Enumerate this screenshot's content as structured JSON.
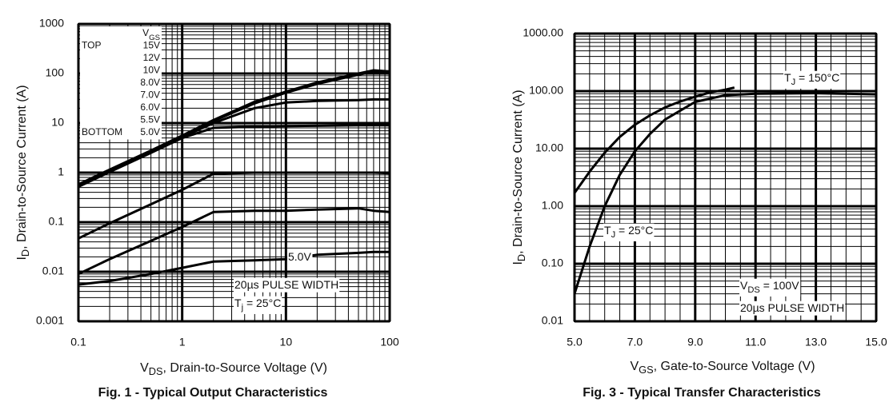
{
  "chart_data": [
    {
      "type": "line",
      "caption": "Fig. 1 - Typical Output Characteristics",
      "xlabel": [
        "V",
        "DS",
        ", Drain-to-Source Voltage (V)"
      ],
      "ylabel": [
        "I",
        "D",
        ", Drain-to-Source Current (A)"
      ],
      "xscale": "log",
      "yscale": "log",
      "grid": true,
      "minor_grid": true,
      "color": "#000000",
      "xlim": [
        0.1,
        100
      ],
      "xticks": [
        0.1,
        1,
        10,
        100
      ],
      "ylim": [
        0.001,
        1000
      ],
      "yticks": [
        0.001,
        0.01,
        0.1,
        1,
        10,
        100,
        1000
      ],
      "x": [
        0.1,
        0.2,
        0.5,
        1,
        2,
        5,
        10,
        20,
        50,
        70,
        100
      ],
      "legend": {
        "title": [
          "V",
          "GS"
        ],
        "top": "TOP",
        "bottom": "BOTTOM",
        "corner": "top-left"
      },
      "series": [
        {
          "name": "15V",
          "values": [
            0.58,
            1.15,
            2.8,
            5.6,
            11.5,
            27,
            43,
            66,
            100,
            116,
            110
          ]
        },
        {
          "name": "12V",
          "values": [
            0.57,
            1.13,
            2.75,
            5.5,
            11.2,
            26,
            42,
            64,
            98,
            112,
            108
          ]
        },
        {
          "name": "10V",
          "values": [
            0.56,
            1.1,
            2.7,
            5.4,
            11,
            25,
            41,
            62,
            95,
            108,
            105
          ]
        },
        {
          "name": "8.0V",
          "values": [
            0.54,
            1.07,
            2.6,
            5.2,
            10,
            20,
            26,
            28,
            29,
            30,
            30
          ]
        },
        {
          "name": "7.0V",
          "values": [
            0.52,
            1.03,
            2.5,
            5,
            8,
            8.5,
            8.7,
            8.8,
            9,
            9,
            9
          ]
        },
        {
          "name": "6.0V",
          "values": [
            0.047,
            0.095,
            0.23,
            0.45,
            0.95,
            1,
            1,
            1,
            1,
            1,
            0.97
          ]
        },
        {
          "name": "5.5V",
          "values": [
            0.009,
            0.018,
            0.042,
            0.08,
            0.16,
            0.17,
            0.17,
            0.18,
            0.19,
            0.17,
            0.16
          ]
        },
        {
          "name": "5.0V",
          "values": [
            0.0055,
            0.0065,
            0.009,
            0.012,
            0.016,
            0.017,
            0.018,
            0.022,
            0.024,
            0.025,
            0.025
          ]
        }
      ],
      "annotations": [
        [
          "5.0V"
        ],
        [
          "20µs PULSE WIDTH"
        ],
        [
          "T",
          "j",
          " = 25°C"
        ]
      ]
    },
    {
      "type": "line",
      "caption": "Fig. 3 - Typical Transfer Characteristics",
      "xlabel": [
        "V",
        "GS",
        ", Gate-to-Source Voltage (V)"
      ],
      "ylabel": [
        "I",
        "D",
        ", Drain-to-Source Current  (A)"
      ],
      "xscale": "linear",
      "yscale": "log",
      "grid": true,
      "minor_grid": true,
      "color": "#000000",
      "xlim": [
        5,
        15
      ],
      "xticks": [
        {
          "value": 5,
          "label": "5.0"
        },
        {
          "value": 7,
          "label": "7.0"
        },
        {
          "value": 9,
          "label": "9.0"
        },
        {
          "value": 11,
          "label": "11.0"
        },
        {
          "value": 13,
          "label": "13.0"
        },
        {
          "value": 15,
          "label": "15.0"
        }
      ],
      "ylim": [
        0.01,
        1000
      ],
      "yticks": [
        0.01,
        {
          "value": 0.1,
          "label": "0.10"
        },
        {
          "value": 1,
          "label": "1.00"
        },
        {
          "value": 10,
          "label": "10.00"
        },
        {
          "value": 100,
          "label": "100.00"
        },
        {
          "value": 1000,
          "label": "1000.00"
        }
      ],
      "series": [
        {
          "x": [
            5,
            5.5,
            6,
            6.5,
            7,
            7.5,
            8,
            8.5,
            9,
            9.5,
            10,
            10.3
          ],
          "values": [
            1.7,
            4,
            8.5,
            16,
            26,
            38,
            52,
            66,
            80,
            95,
            106,
            115
          ]
        },
        {
          "x": [
            5,
            5.5,
            6,
            6.5,
            7,
            7.5,
            8,
            9,
            10,
            11,
            13,
            15
          ],
          "values": [
            0.03,
            0.2,
            1,
            3.5,
            9,
            18,
            32,
            65,
            85,
            90,
            92,
            88
          ]
        }
      ],
      "annotations": [
        [
          "T",
          "J",
          " = 150°C"
        ],
        [
          "T",
          "J",
          " = 25°C"
        ],
        [
          "V",
          "DS",
          " = 100V"
        ],
        [
          "20µs PULSE WIDTH"
        ]
      ]
    }
  ]
}
